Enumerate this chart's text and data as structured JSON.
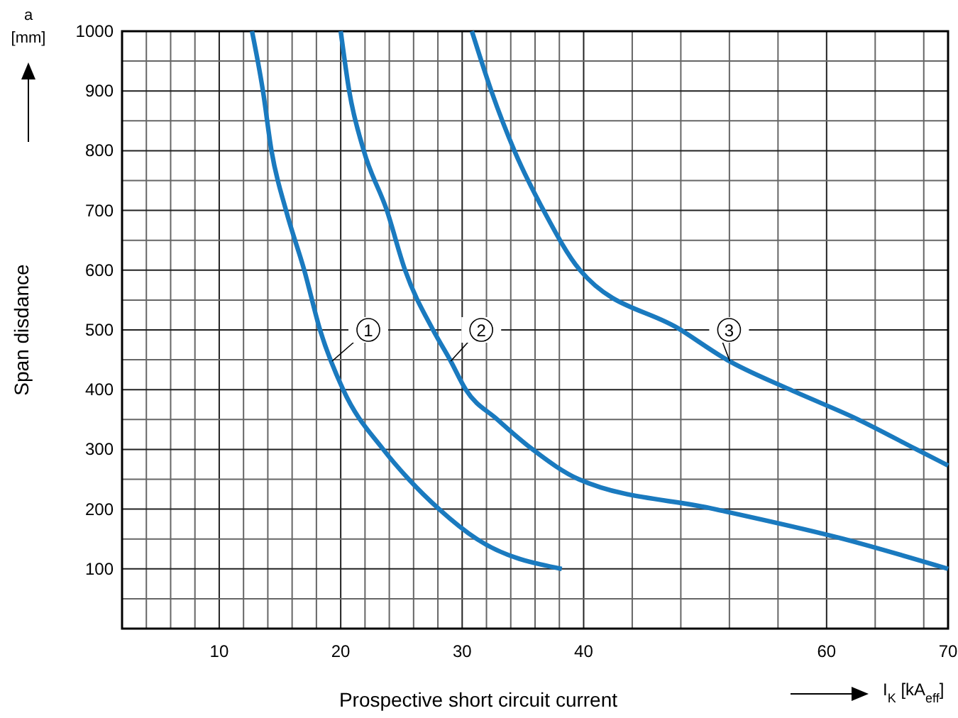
{
  "chart_data": {
    "type": "line",
    "xlabel": "Prospective short circuit current",
    "ylabel": "Span disdance",
    "xlim": [
      2,
      70
    ],
    "ylim": [
      0,
      1000
    ],
    "xticks": [
      {
        "value": 4,
        "label": null
      },
      {
        "value": 6,
        "label": null
      },
      {
        "value": 8,
        "label": null
      },
      10,
      {
        "value": 12,
        "label": null
      },
      {
        "value": 14,
        "label": null
      },
      {
        "value": 16,
        "label": null
      },
      {
        "value": 18,
        "label": null
      },
      20,
      {
        "value": 22,
        "label": null
      },
      {
        "value": 24,
        "label": null
      },
      {
        "value": 26,
        "label": null
      },
      {
        "value": 28,
        "label": null
      },
      30,
      {
        "value": 32,
        "label": null
      },
      {
        "value": 34,
        "label": null
      },
      {
        "value": 36,
        "label": null
      },
      {
        "value": 38,
        "label": null
      },
      40,
      {
        "value": 44,
        "label": null
      },
      {
        "value": 48,
        "label": null
      },
      {
        "value": 52,
        "label": null
      },
      {
        "value": 56,
        "label": null
      },
      60,
      {
        "value": 64,
        "label": null
      },
      {
        "value": 68,
        "label": null
      },
      70
    ],
    "yticks": [
      {
        "value": 50,
        "label": null
      },
      100,
      {
        "value": 150,
        "label": null
      },
      200,
      {
        "value": 250,
        "label": null
      },
      300,
      {
        "value": 350,
        "label": null
      },
      400,
      {
        "value": 450,
        "label": null
      },
      500,
      {
        "value": 550,
        "label": null
      },
      600,
      {
        "value": 650,
        "label": null
      },
      700,
      {
        "value": 750,
        "label": null
      },
      800,
      {
        "value": 850,
        "label": null
      },
      900,
      {
        "value": 950,
        "label": null
      },
      1000
    ],
    "grid": true,
    "marker": "none",
    "line_style": "solid",
    "series": [
      {
        "name": "1",
        "color": "#1a7abf",
        "x": [
          12.7,
          13.6,
          14.3,
          15.5,
          17.0,
          18.3,
          20.2,
          23.5,
          25.6,
          28.1,
          31.2,
          38.2
        ],
        "values": [
          1000,
          900,
          800,
          700,
          600,
          500,
          400,
          300,
          250,
          200,
          150,
          100
        ]
      },
      {
        "name": "2",
        "color": "#1a7abf",
        "x": [
          20.0,
          20.7,
          21.9,
          23.8,
          25.3,
          27.6,
          29.0,
          30.3,
          32.9,
          35.8,
          39.6,
          50.8,
          61.4,
          70
        ],
        "values": [
          1000,
          900,
          800,
          700,
          600,
          500,
          450,
          400,
          350,
          300,
          250,
          200,
          150,
          100
        ]
      },
      {
        "name": "3",
        "color": "#1a7abf",
        "x": [
          30.8,
          32.4,
          34.3,
          36.7,
          39.7,
          48.0,
          51.8,
          57.0,
          62.6,
          67.4,
          70
        ],
        "values": [
          1000,
          900,
          800,
          700,
          600,
          500,
          450,
          400,
          350,
          300,
          273
        ]
      }
    ],
    "annotations": [
      "a [mm]",
      "I$_{K}$ [kA$_{eff}$]"
    ]
  }
}
